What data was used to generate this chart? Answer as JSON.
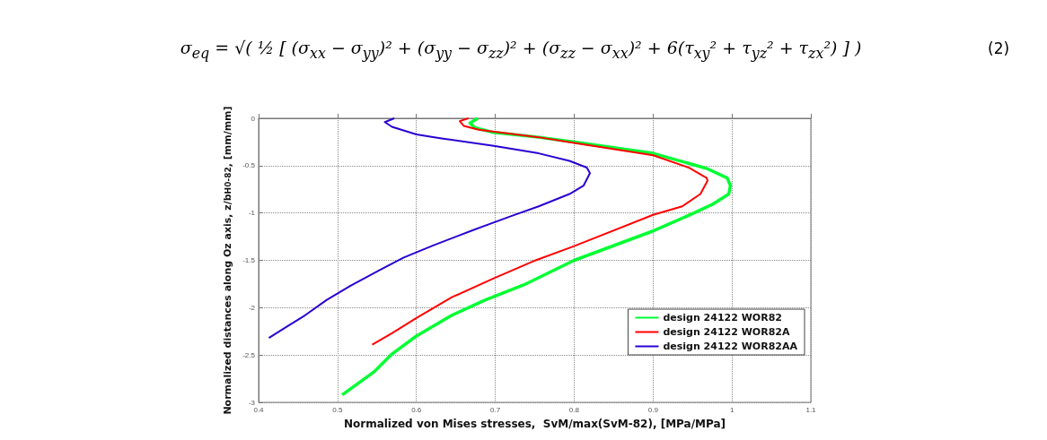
{
  "chart_data": {
    "type": "line",
    "annotations": [
      "σ$_{eq}$ = √( ½ [ (σ$_{xx}$ − σ$_{yy}$)² + (σ$_{yy}$ − σ$_{zz}$)² + (σ$_{zz}$ − σ$_{xx}$)² + 6(τ$_{xy}$² + τ$_{yz}$² + τ$_{zx}$²) ] )",
      "(2)"
    ],
    "xlabel": "Normalized von Mises stresses,  SvM/max(SvM-82), [MPa/MPa]",
    "ylabel": "Normalized distances along Oz axis, z/b$_{H0-82}$, [mm/mm]",
    "series": [
      {
        "name": "design 24122 WOR82",
        "color": "#00ff33",
        "x": [
          0.678,
          0.668,
          0.674,
          0.698,
          0.755,
          0.8,
          0.9,
          0.968,
          0.994,
          0.998,
          0.996,
          0.975,
          0.952,
          0.9,
          0.8,
          0.736,
          0.687,
          0.645,
          0.6,
          0.569,
          0.546,
          0.506
        ],
        "values": [
          0,
          -0.05,
          -0.1,
          -0.15,
          -0.2,
          -0.25,
          -0.37,
          -0.53,
          -0.63,
          -0.71,
          -0.8,
          -0.91,
          -1.0,
          -1.19,
          -1.5,
          -1.76,
          -1.92,
          -2.08,
          -2.3,
          -2.49,
          -2.68,
          -2.92
        ]
      },
      {
        "name": "design 24122 WOR82A",
        "color": "#ff0000",
        "x": [
          0.666,
          0.655,
          0.66,
          0.679,
          0.755,
          0.8,
          0.9,
          0.945,
          0.968,
          0.969,
          0.96,
          0.937,
          0.9,
          0.8,
          0.748,
          0.698,
          0.645,
          0.6,
          0.569,
          0.544
        ],
        "values": [
          0,
          -0.03,
          -0.08,
          -0.12,
          -0.2,
          -0.26,
          -0.39,
          -0.52,
          -0.63,
          -0.66,
          -0.8,
          -0.93,
          -1.02,
          -1.35,
          -1.51,
          -1.69,
          -1.89,
          -2.11,
          -2.27,
          -2.39
        ]
      },
      {
        "name": "design 24122 WOR82AA",
        "color": "#2a00d4",
        "x": [
          0.572,
          0.56,
          0.569,
          0.6,
          0.63,
          0.698,
          0.755,
          0.794,
          0.816,
          0.82,
          0.812,
          0.794,
          0.755,
          0.721,
          0.672,
          0.622,
          0.584,
          0.554,
          0.516,
          0.486,
          0.459,
          0.436,
          0.413
        ],
        "values": [
          0,
          -0.04,
          -0.09,
          -0.17,
          -0.21,
          -0.29,
          -0.37,
          -0.45,
          -0.52,
          -0.58,
          -0.71,
          -0.8,
          -0.93,
          -1.03,
          -1.18,
          -1.34,
          -1.47,
          -1.6,
          -1.77,
          -1.92,
          -2.08,
          -2.2,
          -2.32
        ]
      }
    ],
    "xlim": [
      0.4,
      1.1
    ],
    "xticks": [
      0.4,
      0.5,
      0.6,
      0.7,
      0.8,
      0.9,
      1,
      1.1
    ],
    "ylim": [
      -3,
      0
    ],
    "yticks": [
      -3,
      -2.5,
      -2,
      -1.5,
      -1,
      -0.5,
      0
    ],
    "grid": true,
    "legend": "bottom right"
  }
}
